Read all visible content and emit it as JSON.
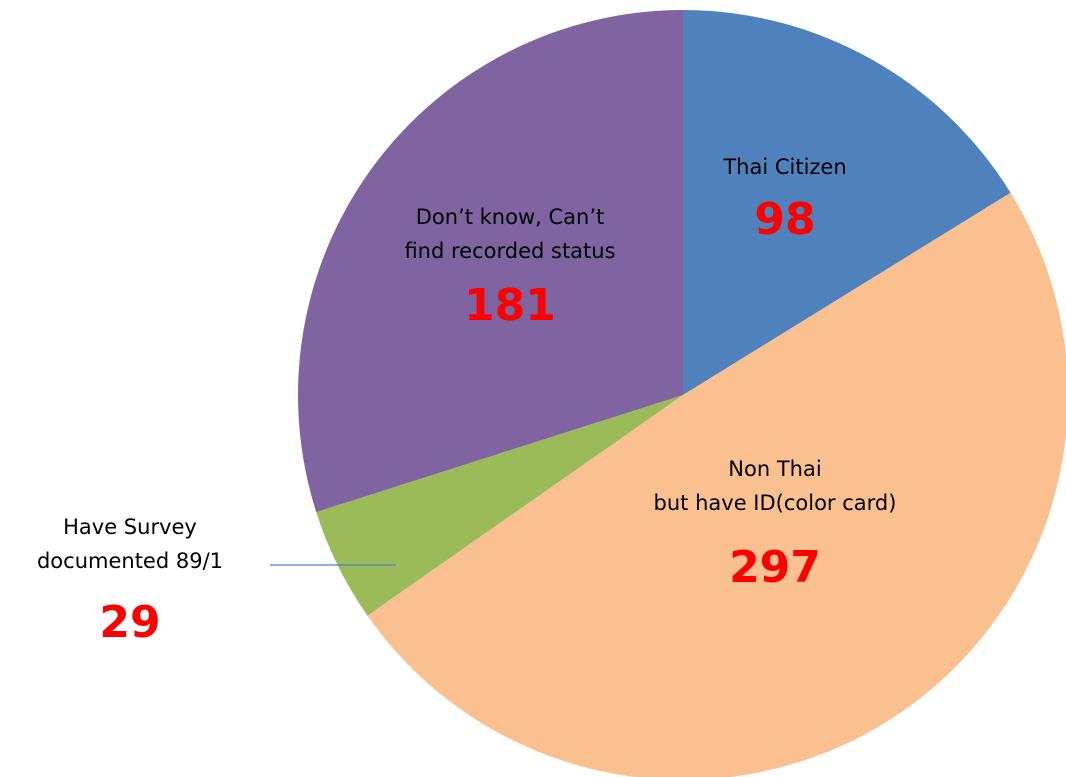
{
  "chart_data": {
    "type": "pie",
    "categories": [
      "Thai Citizen",
      "Non Thai\nbut have ID(color card)",
      "Have Survey\ndocumented 89/1",
      "Don’t know, Can’t\nfind  recorded status"
    ],
    "values": [
      98,
      297,
      29,
      181
    ],
    "colors": [
      "#4f81bd",
      "#fac090",
      "#9bbb59",
      "#8064a2"
    ],
    "value_color": "#ff0000"
  }
}
